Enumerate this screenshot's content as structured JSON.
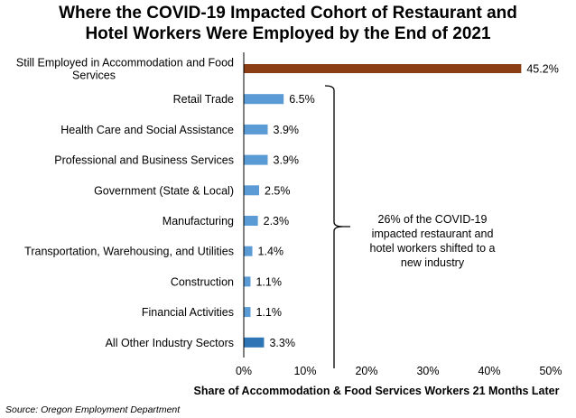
{
  "chart_data": {
    "type": "bar",
    "orientation": "horizontal",
    "title_lines": [
      "Where the COVID-19 Impacted Cohort of Restaurant and",
      "Hotel Workers Were Employed by the End of 2021"
    ],
    "categories": [
      [
        "Still Employed in Accommodation and Food",
        "Services"
      ],
      [
        "Retail Trade"
      ],
      [
        "Health Care and Social Assistance"
      ],
      [
        "Professional and Business Services"
      ],
      [
        "Government (State & Local)"
      ],
      [
        "Manufacturing"
      ],
      [
        "Transportation, Warehousing, and Utilities"
      ],
      [
        "Construction"
      ],
      [
        "Financial Activities"
      ],
      [
        "All Other Industry Sectors"
      ]
    ],
    "values": [
      45.2,
      6.5,
      3.9,
      3.9,
      2.5,
      2.3,
      1.4,
      1.1,
      1.1,
      3.3
    ],
    "value_labels": [
      "45.2%",
      "6.5%",
      "3.9%",
      "3.9%",
      "2.5%",
      "2.3%",
      "1.4%",
      "1.1%",
      "1.1%",
      "3.3%"
    ],
    "bar_colors": [
      "#8B3E13",
      "#5B9BD5",
      "#5B9BD5",
      "#5B9BD5",
      "#5B9BD5",
      "#5B9BD5",
      "#5B9BD5",
      "#5B9BD5",
      "#5B9BD5",
      "#2E75B6"
    ],
    "xlim": [
      0,
      50
    ],
    "xticks": [
      0,
      10,
      20,
      30,
      40,
      50
    ],
    "xtick_labels": [
      "0%",
      "10%",
      "20%",
      "30%",
      "40%",
      "50%"
    ],
    "xlabel": "Share of Accommodation & Food Services Workers 21 Months Later",
    "grid": false,
    "annotation_lines": [
      "26% of the COVID-19",
      "impacted restaurant and",
      "hotel workers shifted to a",
      "new industry"
    ],
    "source": "Source: Oregon Employment Department"
  }
}
